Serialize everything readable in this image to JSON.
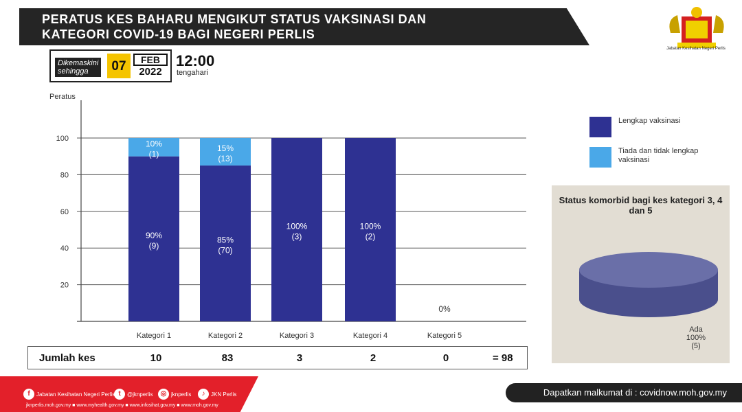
{
  "header": {
    "title_line1": "PERATUS KES BAHARU MENGIKUT STATUS VAKSINASI  DAN",
    "title_line2": "KATEGORI COVID-19 BAGI NEGERI PERLIS",
    "logo_caption": "Jabatan Kesihatan Negeri Perlis"
  },
  "update": {
    "label_line1": "Dikemaskini",
    "label_line2": "sehingga",
    "day": "07",
    "month": "FEB",
    "year": "2022",
    "time": "12:00",
    "time_note": "tengahari"
  },
  "chart_data": {
    "type": "bar",
    "ylabel": "Peratus",
    "ylim": [
      0,
      100
    ],
    "yticks": [
      20,
      40,
      60,
      80,
      100
    ],
    "categories": [
      "Kategori 1",
      "Kategori 2",
      "Kategori 3",
      "Kategori 4",
      "Kategori 5"
    ],
    "series": [
      {
        "name": "Lengkap vaksinasi",
        "color": "#2e3192",
        "values": [
          90,
          85,
          100,
          100,
          0
        ],
        "labels_pct": [
          "90%",
          "85%",
          "100%",
          "100%",
          ""
        ],
        "labels_count": [
          "(9)",
          "(70)",
          "(3)",
          "(2)",
          ""
        ]
      },
      {
        "name": "Tiada dan tidak lengkap vaksinasi",
        "color": "#4aa8e8",
        "values": [
          10,
          15,
          0,
          0,
          0
        ],
        "labels_pct": [
          "10%",
          "15%",
          "",
          "",
          ""
        ],
        "labels_count": [
          "(1)",
          "(13)",
          "",
          "",
          ""
        ]
      }
    ],
    "zero_label": "0%",
    "totals_label": "Jumlah kes",
    "totals": [
      "10",
      "83",
      "3",
      "2",
      "0"
    ],
    "grand_total": "= 98"
  },
  "comorbid": {
    "title": "Status komorbid bagi kes kategori 3, 4 dan 5",
    "slice_label": "Ada",
    "slice_pct": "100%",
    "slice_count": "(5)",
    "color": "#4a4f8c"
  },
  "footer": {
    "social": [
      {
        "icon": "facebook-icon",
        "glyph": "f",
        "text": "Jabatan Kesihatan Negeri Perlis"
      },
      {
        "icon": "twitter-icon",
        "glyph": "t",
        "text": "@jknperlis"
      },
      {
        "icon": "instagram-icon",
        "glyph": "◎",
        "text": "jknperlis"
      },
      {
        "icon": "tiktok-icon",
        "glyph": "♪",
        "text": "JKN Perlis"
      }
    ],
    "links": "jknperlis.moh.gov.my ■ www.myhealth.gov.my ■ www.infosihat.gov.my ■ www.moh.gov.my",
    "info": "Dapatkan malkumat di : covidnow.moh.gov.my"
  }
}
